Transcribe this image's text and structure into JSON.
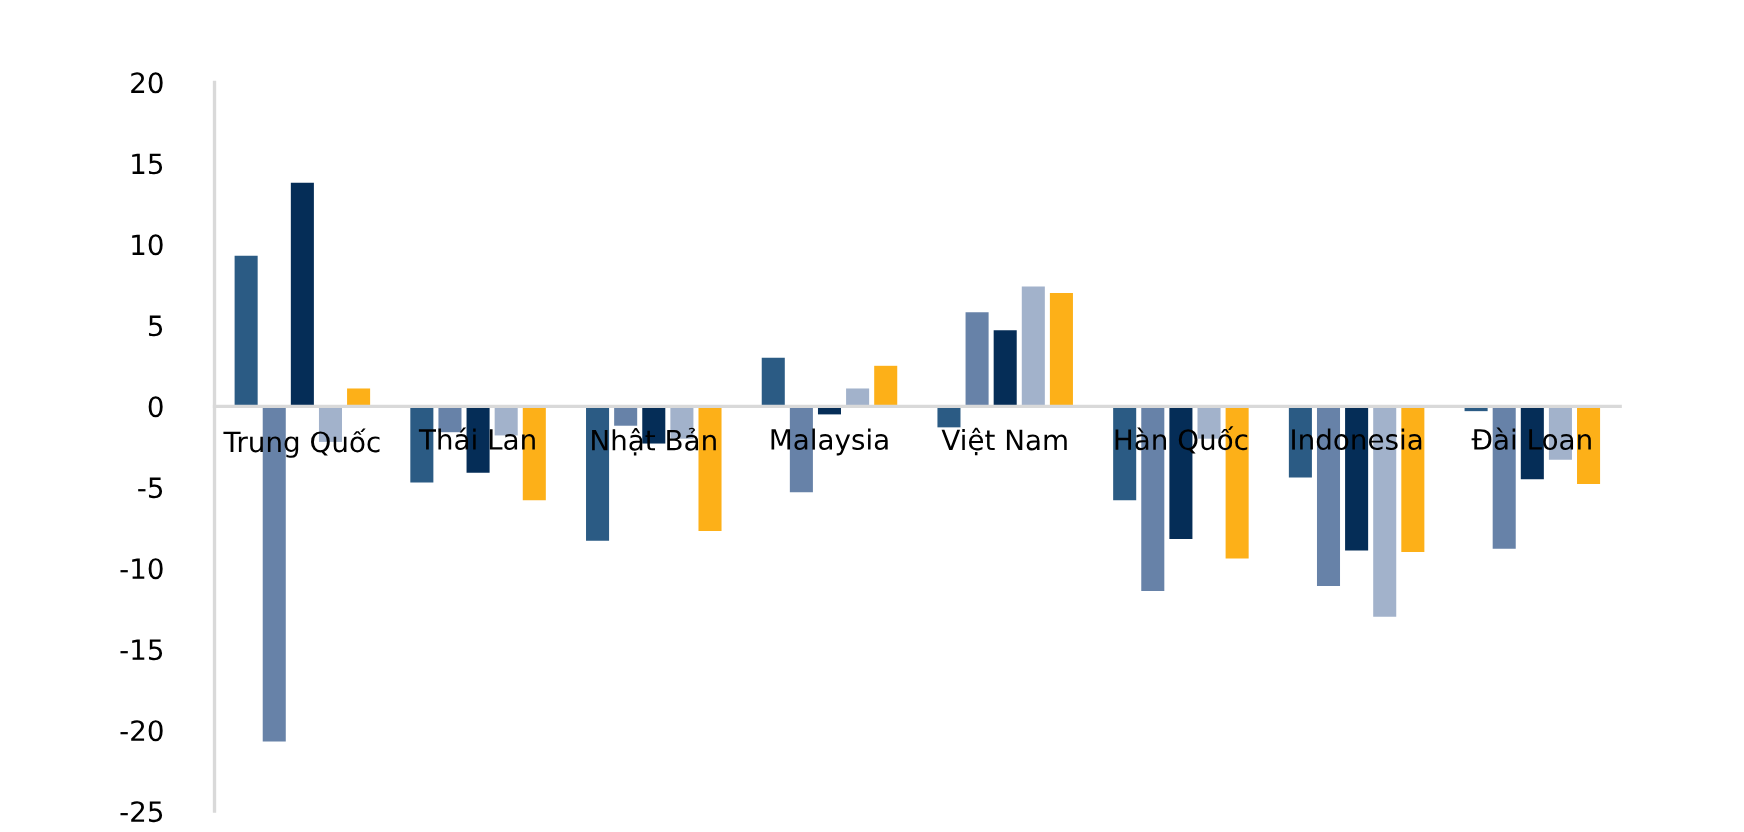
{
  "chart_data": {
    "type": "bar",
    "categories": [
      "Trung Quốc",
      "Thái Lan",
      "Nhật Bản",
      "Malaysia",
      "Việt Nam",
      "Hàn Quốc",
      "Indonesia",
      "Đài Loan"
    ],
    "series": [
      {
        "color": "#2b5b84",
        "values": [
          9.3,
          -4.7,
          -8.3,
          3.0,
          -1.3,
          -5.8,
          -4.4,
          -0.3
        ]
      },
      {
        "color": "#6782a8",
        "values": [
          -20.7,
          -1.6,
          -1.2,
          -5.3,
          5.8,
          -11.4,
          -11.1,
          -8.8
        ]
      },
      {
        "color": "#052d57",
        "values": [
          13.8,
          -4.1,
          -2.3,
          -0.5,
          4.7,
          -8.2,
          -8.9,
          -4.5
        ]
      },
      {
        "color": "#a2b2cb",
        "values": [
          -2.2,
          -1.8,
          -2.0,
          1.1,
          7.4,
          -2.0,
          -13.0,
          -3.3
        ]
      },
      {
        "color": "#fdb018",
        "values": [
          1.1,
          -5.8,
          -7.7,
          2.5,
          7.0,
          -9.4,
          -9.0,
          -4.8
        ]
      }
    ],
    "ylim": [
      -25,
      20
    ],
    "yticks": [
      -25,
      -20,
      -15,
      -10,
      -5,
      0,
      5,
      10,
      15,
      20
    ],
    "grid": false,
    "legend": false
  }
}
